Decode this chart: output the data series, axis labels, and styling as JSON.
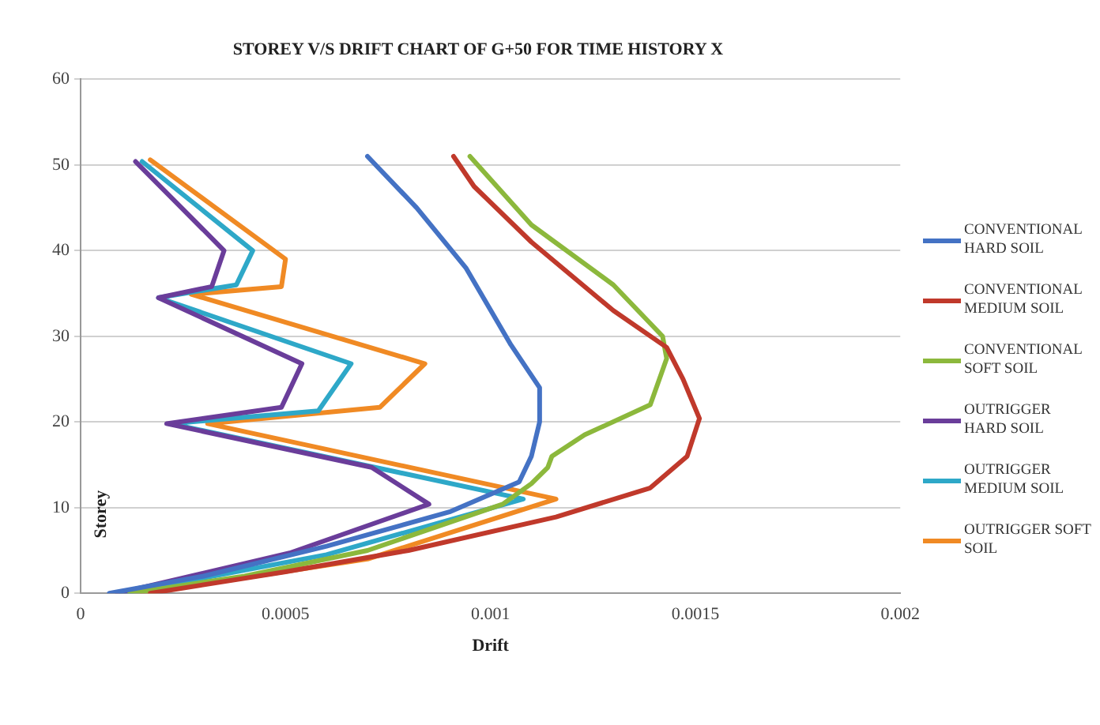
{
  "chart_data": {
    "type": "line",
    "title": "STOREY V/S DRIFT CHART OF G+50 FOR TIME HISTORY X",
    "xlabel": "Drift",
    "ylabel": "Storey",
    "xlim": [
      0,
      0.002
    ],
    "xticks": [
      0,
      0.0005,
      0.001,
      0.0015,
      0.002
    ],
    "ylim": [
      0,
      60
    ],
    "yticks": [
      0,
      10,
      20,
      30,
      40,
      50,
      60
    ],
    "grid": "y",
    "legend": "right",
    "marker": "none",
    "line_style": "solid",
    "series": [
      {
        "name": "CONVENTIONAL HARD SOIL",
        "color": "#4472c4",
        "x": [
          7e-05,
          0.0003,
          0.0006,
          0.0009,
          0.00107,
          0.0011,
          0.00112,
          0.00112,
          0.00105,
          0.00094,
          0.00082,
          0.0007
        ],
        "values": [
          0,
          2,
          5.5,
          9.5,
          13,
          16,
          20,
          24,
          29,
          38,
          45,
          51
        ]
      },
      {
        "name": "CONVENTIONAL MEDIUM SOIL",
        "color": "#c0392b",
        "x": [
          0.00017,
          0.0005,
          0.0008,
          0.00116,
          0.00139,
          0.00148,
          0.00151,
          0.00147,
          0.00143,
          0.0013,
          0.0011,
          0.00096,
          0.00091
        ],
        "values": [
          0,
          2.5,
          5,
          8.9,
          12.3,
          16,
          20.4,
          25,
          28.7,
          33,
          41,
          47.5,
          51
        ]
      },
      {
        "name": "CONVENTIONAL SOFT SOIL",
        "color": "#8cb83c",
        "x": [
          0.00012,
          0.0004,
          0.0007,
          0.00103,
          0.0011,
          0.00114,
          0.00115,
          0.00123,
          0.00139,
          0.00143,
          0.00142,
          0.0013,
          0.0011,
          0.00095
        ],
        "values": [
          0,
          2,
          5,
          10.4,
          12.8,
          14.7,
          16,
          18.5,
          22,
          27.4,
          30,
          36,
          43,
          51
        ]
      },
      {
        "name": "OUTRIGGER HARD SOIL",
        "color": "#6a3d9a",
        "x": [
          9e-05,
          0.00051,
          0.00085,
          0.00071,
          0.00021,
          0.00049,
          0.00054,
          0.00019,
          0.00032,
          0.00035,
          0.000134
        ],
        "values": [
          0,
          4.7,
          10.4,
          14.7,
          19.8,
          21.7,
          26.8,
          34.5,
          35.8,
          40,
          50.4
        ]
      },
      {
        "name": "OUTRIGGER MEDIUM SOIL",
        "color": "#2ea8c8",
        "x": [
          0.0001,
          0.0006,
          0.00108,
          0.00022,
          0.00058,
          0.00066,
          0.00019,
          0.00038,
          0.00042,
          0.00015
        ],
        "values": [
          0,
          4.5,
          11,
          19.8,
          21.3,
          26.8,
          34.5,
          36,
          40,
          50.4
        ]
      },
      {
        "name": "OUTRIGGER SOFT SOIL",
        "color": "#f08a24",
        "x": [
          0.00015,
          0.0007,
          0.00116,
          0.00031,
          0.00073,
          0.00084,
          0.00027,
          0.00049,
          0.0005,
          0.00017
        ],
        "values": [
          0,
          4,
          11,
          19.8,
          21.7,
          26.8,
          34.9,
          35.8,
          39,
          50.6
        ]
      }
    ]
  }
}
